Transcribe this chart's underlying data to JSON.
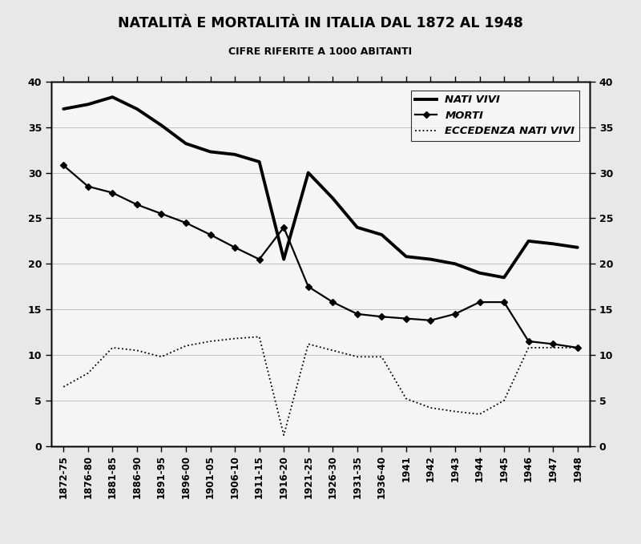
{
  "title": "NATALITÀ E MORTALITÀ IN ITALIA DAL 1872 AL 1948",
  "subtitle": "CIFRE RIFERITE A 1000 ABITANTI",
  "x_labels": [
    "1872-75",
    "1876-80",
    "1881-85",
    "1886-90",
    "1891-95",
    "1896-00",
    "1901-05",
    "1906-10",
    "1911-15",
    "1916-20",
    "1921-25",
    "1926-30",
    "1931-35",
    "1936-40",
    "1941",
    "1942",
    "1943",
    "1944",
    "1945",
    "1946",
    "1947",
    "1948"
  ],
  "nati_vivi": [
    37.0,
    37.5,
    38.3,
    37.0,
    35.2,
    33.2,
    32.3,
    32.0,
    31.2,
    20.5,
    30.0,
    27.2,
    24.0,
    23.2,
    20.8,
    20.5,
    20.0,
    19.0,
    18.5,
    22.5,
    22.2,
    21.8
  ],
  "morti": [
    30.8,
    28.5,
    27.8,
    26.5,
    25.5,
    24.5,
    23.2,
    21.8,
    20.5,
    24.0,
    17.5,
    15.8,
    14.5,
    14.2,
    14.0,
    13.8,
    14.5,
    15.8,
    15.8,
    11.5,
    11.2,
    10.8
  ],
  "eccedenza": [
    6.5,
    8.0,
    10.8,
    10.5,
    9.8,
    11.0,
    11.5,
    11.8,
    12.0,
    1.2,
    11.2,
    10.5,
    9.8,
    9.8,
    5.2,
    4.2,
    3.8,
    3.5,
    5.0,
    10.8,
    10.8,
    10.8
  ],
  "background_color": "#e8e8e8",
  "plot_bg": "#f5f5f5",
  "ylim": [
    0,
    40
  ],
  "yticks": [
    0,
    5,
    10,
    15,
    20,
    25,
    30,
    35,
    40
  ]
}
